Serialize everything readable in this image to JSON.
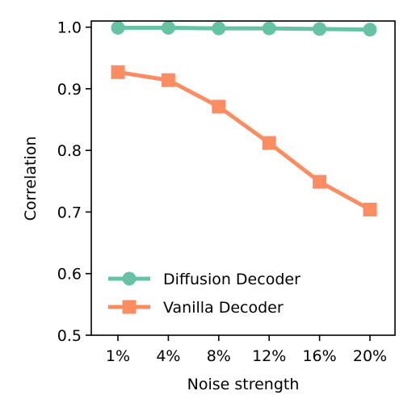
{
  "chart_data": {
    "type": "line",
    "xlabel": "Noise strength",
    "ylabel": "Correlation",
    "categories": [
      "1%",
      "4%",
      "8%",
      "12%",
      "16%",
      "20%"
    ],
    "ylim": [
      0.5,
      1.01
    ],
    "yticks": [
      "0.5",
      "0.6",
      "0.7",
      "0.8",
      "0.9",
      "1.0"
    ],
    "grid": false,
    "legend_position": "lower-left",
    "series": [
      {
        "name": "Diffusion Decoder",
        "marker": "circle",
        "color": "#66c2a5",
        "values": [
          0.999,
          0.999,
          0.998,
          0.998,
          0.997,
          0.996
        ]
      },
      {
        "name": "Vanilla Decoder",
        "marker": "square",
        "color": "#fc8d62",
        "values": [
          0.927,
          0.914,
          0.871,
          0.812,
          0.749,
          0.704
        ]
      }
    ]
  }
}
